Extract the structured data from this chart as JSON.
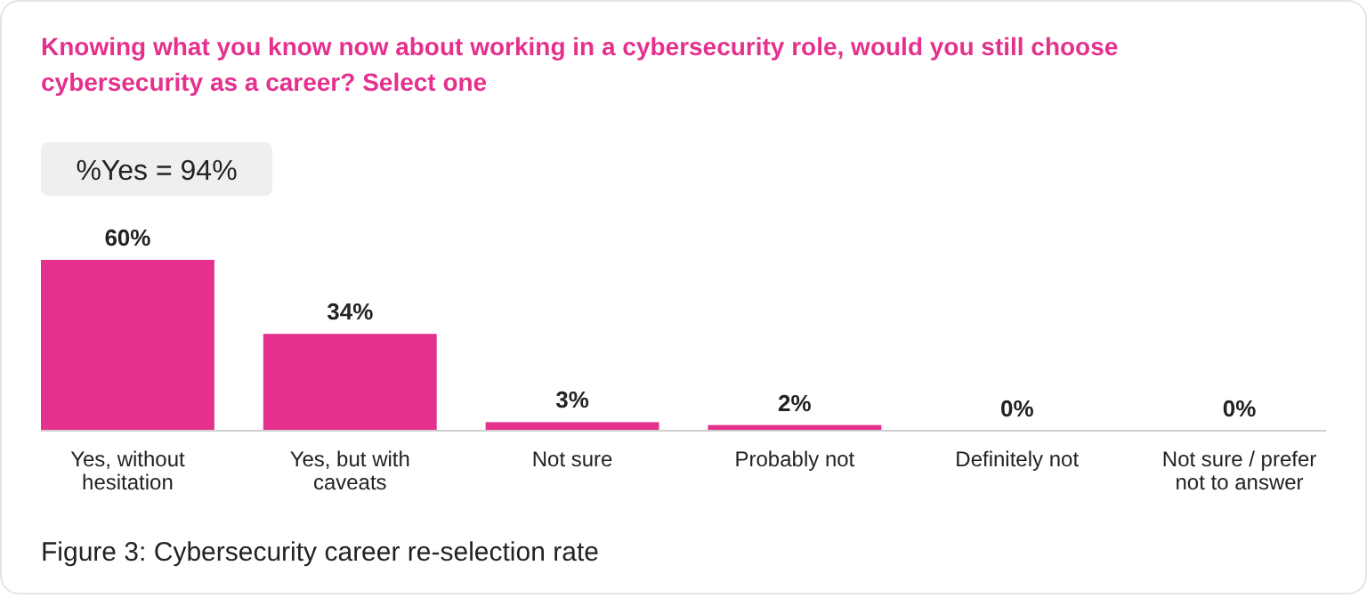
{
  "chart_data": {
    "type": "bar",
    "title": "Knowing what you know now about working in a cybersecurity role, would you still choose cybersecurity as a career? Select one",
    "categories": [
      "Yes, without hesitation",
      "Yes, but with caveats",
      "Not sure",
      "Probably not",
      "Definitely not",
      "Not sure / prefer not to answer"
    ],
    "values": [
      60,
      34,
      3,
      2,
      0,
      0
    ],
    "color": "#e5318e",
    "data_labels": true,
    "value_labels": [
      "60%",
      "34%",
      "3%",
      "2%",
      "0%",
      "0%"
    ],
    "annotations": [
      "%Yes = 94%",
      "Figure 3: Cybersecurity career re-selection rate"
    ]
  }
}
